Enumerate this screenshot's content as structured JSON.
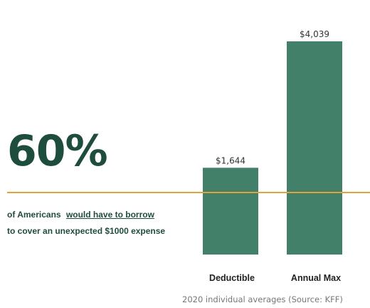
{
  "stat": {
    "value": "60%",
    "desc_prefix": "of Americans",
    "desc_link": "would have to borrow",
    "desc_suffix": "to cover an unexpected $1000 expense"
  },
  "colors": {
    "bar": "#43806a",
    "accent_line": "#e0a23a",
    "stat_text": "#1f4d3d"
  },
  "chart_data": {
    "type": "bar",
    "categories": [
      "Deductible",
      "Annual Max"
    ],
    "values": [
      1644,
      4039
    ],
    "value_labels": [
      "$1,644",
      "$4,039"
    ],
    "title": "",
    "xlabel": "",
    "ylabel": "",
    "ylim": [
      0,
      4039
    ],
    "grid": false,
    "note": "2020 individual averages (Source: KFF)"
  }
}
